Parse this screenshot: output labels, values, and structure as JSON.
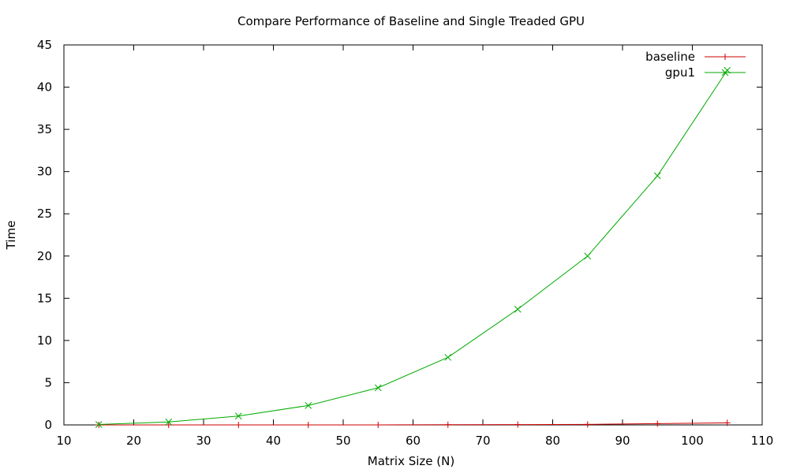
{
  "chart_data": {
    "type": "line",
    "title": "Compare Performance of Baseline and Single Treaded GPU",
    "xlabel": "Matrix Size (N)",
    "ylabel": "Time",
    "xlim": [
      10,
      110
    ],
    "ylim": [
      0,
      45
    ],
    "xticks": [
      10,
      20,
      30,
      40,
      50,
      60,
      70,
      80,
      90,
      100,
      110
    ],
    "yticks": [
      0,
      5,
      10,
      15,
      20,
      25,
      30,
      35,
      40,
      45
    ],
    "grid": false,
    "legend_position": "top-right",
    "series": [
      {
        "name": "baseline",
        "color": "#cc0000",
        "marker": "plus",
        "x": [
          15,
          25,
          35,
          45,
          55,
          65,
          75,
          85,
          95,
          105
        ],
        "y": [
          0.0,
          0.0,
          0.0,
          0.0,
          0.0,
          0.02,
          0.04,
          0.06,
          0.15,
          0.25
        ]
      },
      {
        "name": "gpu1",
        "color": "#00aa00",
        "marker": "cross",
        "x": [
          15,
          25,
          35,
          45,
          55,
          65,
          75,
          85,
          95,
          105
        ],
        "y": [
          0.05,
          0.35,
          1.05,
          2.3,
          4.4,
          8.0,
          13.7,
          20.0,
          29.5,
          42.0
        ]
      }
    ]
  }
}
